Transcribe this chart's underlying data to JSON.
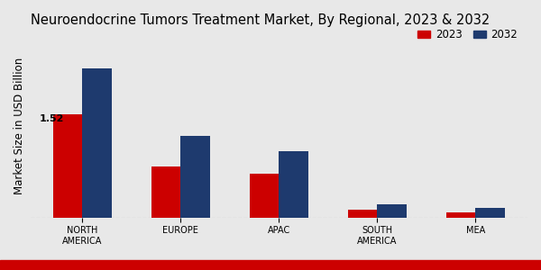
{
  "title": "Neuroendocrine Tumors Treatment Market, By Regional, 2023 & 2032",
  "ylabel": "Market Size in USD Billion",
  "categories": [
    "NORTH\nAMERICA",
    "EUROPE",
    "APAC",
    "SOUTH\nAMERICA",
    "MEA"
  ],
  "values_2023": [
    1.52,
    0.75,
    0.65,
    0.12,
    0.07
  ],
  "values_2032": [
    2.2,
    1.2,
    0.98,
    0.19,
    0.14
  ],
  "color_2023": "#cc0000",
  "color_2032": "#1e3a6e",
  "annotation_label": "1.52",
  "background_color": "#e8e8e8",
  "bar_width": 0.3,
  "legend_labels": [
    "2023",
    "2032"
  ],
  "title_fontsize": 10.5,
  "ylabel_fontsize": 8.5,
  "tick_fontsize": 7,
  "legend_fontsize": 8.5,
  "bottom_bar_color": "#cc0000",
  "ylim": [
    0,
    2.7
  ]
}
